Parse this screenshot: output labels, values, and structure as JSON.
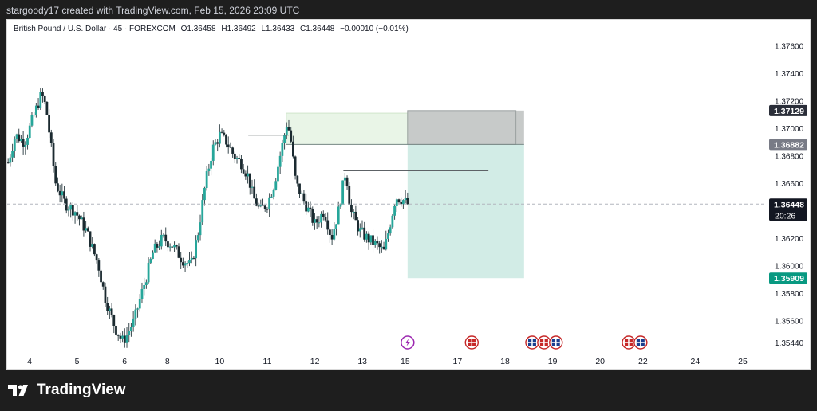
{
  "header": {
    "credit": "stargoody17 created with TradingView.com, Feb 15, 2026 23:09 UTC"
  },
  "legend": {
    "symbol": "British Pound / U.S. Dollar · 45 · FOREXCOM",
    "open": "O1.36458",
    "high": "H1.36492",
    "low": "L1.36433",
    "close": "C1.36448",
    "change": "−0.00010 (−0.01%)"
  },
  "footer": {
    "brand": "TradingView"
  },
  "colors": {
    "up": "#26a69a",
    "down": "#131722",
    "candle_body": "#1b2a30",
    "profit_zone": "#d2ece6",
    "stop_zone": "#c7cac9",
    "target_fill": "#e9f5e7",
    "price_label": "#131722",
    "tp_label": "#089981"
  },
  "chart_data": {
    "type": "candlestick",
    "symbol": "GBPUSD",
    "interval": "45",
    "ylim": [
      1.354,
      1.3776
    ],
    "y_ticks": [
      "1.37600",
      "1.37400",
      "1.37200",
      "1.37000",
      "1.36800",
      "1.36600",
      "1.36200",
      "1.36000",
      "1.35800",
      "1.35600",
      "1.35440"
    ],
    "x_ticks": [
      {
        "label": "4",
        "x": 0.0
      },
      {
        "label": "5",
        "x": 1.0
      },
      {
        "label": "6",
        "x": 2.0
      },
      {
        "label": "8",
        "x": 2.9
      },
      {
        "label": "10",
        "x": 4.0
      },
      {
        "label": "11",
        "x": 5.0
      },
      {
        "label": "12",
        "x": 6.0
      },
      {
        "label": "13",
        "x": 7.0
      },
      {
        "label": "15",
        "x": 7.9
      },
      {
        "label": "17",
        "x": 9.0
      },
      {
        "label": "18",
        "x": 10.0
      },
      {
        "label": "19",
        "x": 11.0
      },
      {
        "label": "20",
        "x": 12.0
      },
      {
        "label": "22",
        "x": 12.9
      },
      {
        "label": "24",
        "x": 14.0
      },
      {
        "label": "25",
        "x": 15.0
      }
    ],
    "price_labels": [
      {
        "value": "1.37129",
        "price": 1.37129,
        "kind": "stop"
      },
      {
        "value": "1.36882",
        "price": 1.36882,
        "kind": "entry"
      },
      {
        "value": "1.36448",
        "price": 1.36448,
        "kind": "current",
        "countdown": "20:26"
      },
      {
        "value": "1.35909",
        "price": 1.35909,
        "kind": "target"
      }
    ],
    "current_price": 1.36448,
    "position": {
      "type": "short",
      "start_x": 7.95,
      "end_x": 10.4,
      "entry": 1.36882,
      "stop": 1.37129,
      "target": 1.35909
    },
    "zones": [
      {
        "x0": 5.4,
        "x1": 7.95,
        "y0": 1.36882,
        "y1": 1.3711
      }
    ],
    "levels": [
      {
        "x0": 4.6,
        "x1": 5.45,
        "price": 1.3695
      },
      {
        "x0": 6.6,
        "x1": 9.65,
        "price": 1.3669
      }
    ],
    "anchors": [
      [
        -0.45,
        1.3675
      ],
      [
        -0.3,
        1.3695
      ],
      [
        -0.1,
        1.369
      ],
      [
        0.05,
        1.3705
      ],
      [
        0.25,
        1.3725
      ],
      [
        0.35,
        1.3715
      ],
      [
        0.55,
        1.366
      ],
      [
        0.75,
        1.3645
      ],
      [
        0.95,
        1.364
      ],
      [
        1.2,
        1.3625
      ],
      [
        1.45,
        1.36
      ],
      [
        1.6,
        1.3575
      ],
      [
        1.8,
        1.3555
      ],
      [
        1.95,
        1.3545
      ],
      [
        2.05,
        1.355
      ],
      [
        2.2,
        1.356
      ],
      [
        2.4,
        1.3585
      ],
      [
        2.6,
        1.361
      ],
      [
        2.8,
        1.362
      ],
      [
        3.0,
        1.3615
      ],
      [
        3.2,
        1.3605
      ],
      [
        3.4,
        1.36
      ],
      [
        3.55,
        1.3625
      ],
      [
        3.7,
        1.366
      ],
      [
        3.85,
        1.3685
      ],
      [
        4.0,
        1.3695
      ],
      [
        4.15,
        1.369
      ],
      [
        4.3,
        1.368
      ],
      [
        4.45,
        1.3675
      ],
      [
        4.6,
        1.3665
      ],
      [
        4.7,
        1.365
      ],
      [
        4.85,
        1.364
      ],
      [
        5.0,
        1.3645
      ],
      [
        5.15,
        1.366
      ],
      [
        5.3,
        1.3685
      ],
      [
        5.42,
        1.3705
      ],
      [
        5.5,
        1.369
      ],
      [
        5.6,
        1.366
      ],
      [
        5.8,
        1.3645
      ],
      [
        6.0,
        1.363
      ],
      [
        6.2,
        1.364
      ],
      [
        6.35,
        1.362
      ],
      [
        6.5,
        1.364
      ],
      [
        6.65,
        1.367
      ],
      [
        6.75,
        1.364
      ],
      [
        6.95,
        1.3625
      ],
      [
        7.1,
        1.362
      ],
      [
        7.3,
        1.3615
      ],
      [
        7.45,
        1.361
      ],
      [
        7.55,
        1.3625
      ],
      [
        7.7,
        1.365
      ],
      [
        7.85,
        1.3648
      ],
      [
        7.95,
        1.36448
      ]
    ]
  }
}
